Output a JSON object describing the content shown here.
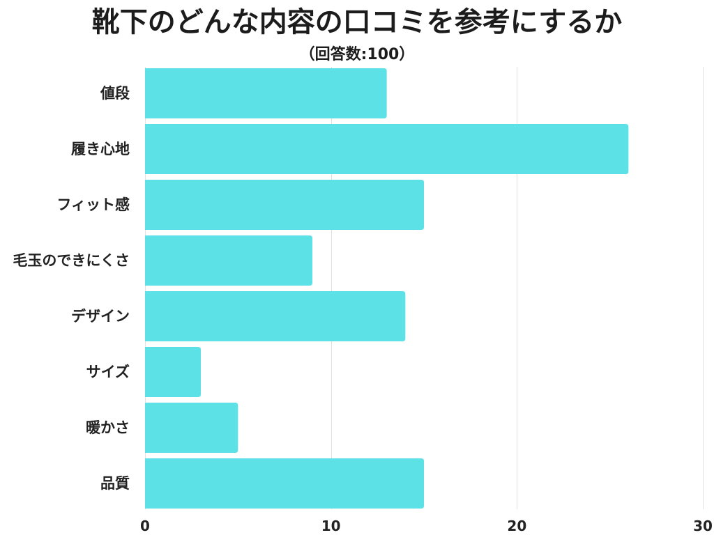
{
  "chart_data": {
    "type": "bar",
    "orientation": "horizontal",
    "title": "靴下のどんな内容の口コミを参考にするか",
    "subtitle": "（回答数:100）",
    "categories": [
      "値段",
      "履き心地",
      "フィット感",
      "毛玉のできにくさ",
      "デザイン",
      "サイズ",
      "暖かさ",
      "品質"
    ],
    "values": [
      13,
      26,
      15,
      9,
      14,
      3,
      5,
      15
    ],
    "xlim": [
      0,
      30
    ],
    "xticks": [
      0,
      10,
      20,
      30
    ],
    "grid": true,
    "bar_color": "#5CE1E6"
  }
}
